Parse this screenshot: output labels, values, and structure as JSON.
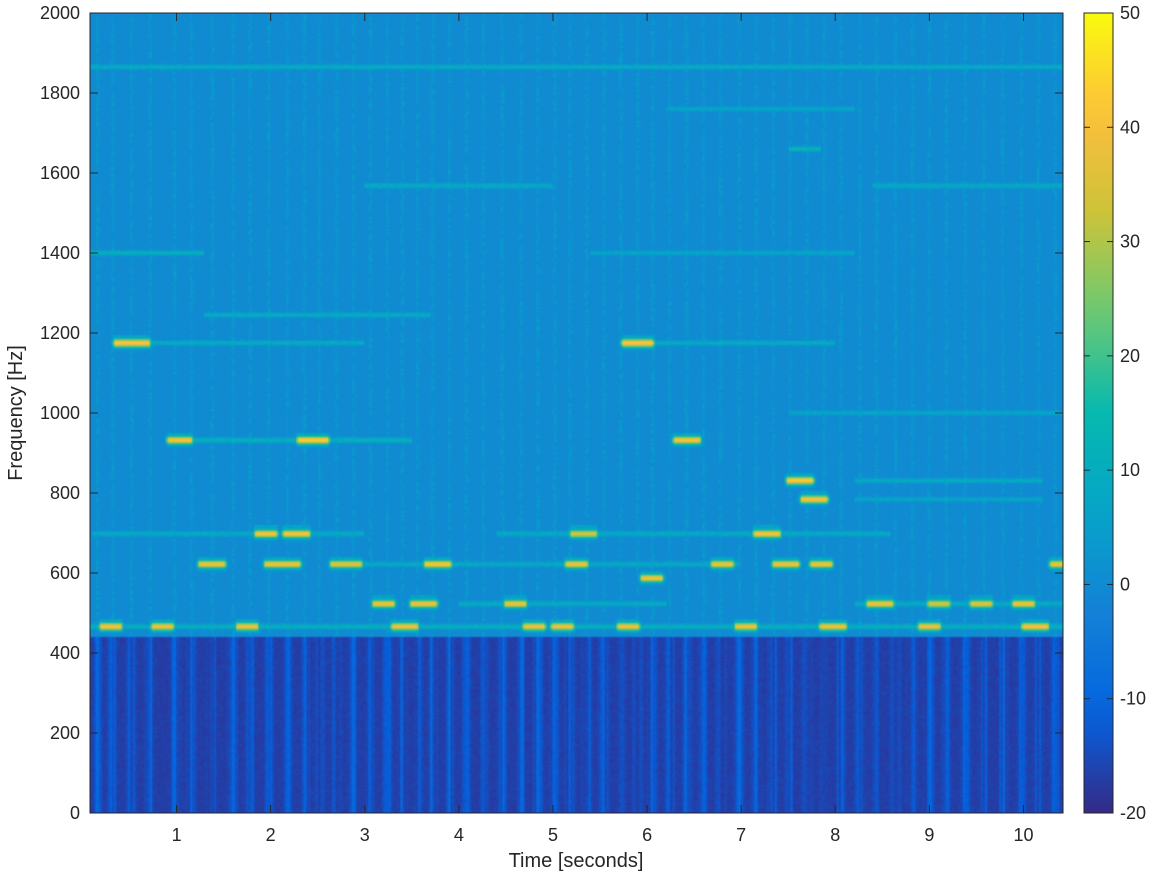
{
  "chart_data": {
    "type": "heatmap",
    "title": "",
    "xlabel": "Time [seconds]",
    "ylabel": "Frequency [Hz]",
    "xlim": [
      0.08,
      10.42
    ],
    "ylim": [
      0,
      2000
    ],
    "x_ticks": [
      1,
      2,
      3,
      4,
      5,
      6,
      7,
      8,
      9,
      10
    ],
    "y_ticks": [
      0,
      200,
      400,
      600,
      800,
      1000,
      1200,
      1400,
      1600,
      1800,
      2000
    ],
    "colorbar": {
      "min": -20,
      "max": 50,
      "ticks": [
        -20,
        -10,
        0,
        10,
        20,
        30,
        40,
        50
      ],
      "colormap": "parula"
    },
    "lowpass_cutoff_hz": 440,
    "note_frame_times_s": [
      0.16,
      0.32,
      0.52,
      0.72,
      0.98,
      1.16,
      1.38,
      1.6,
      1.78,
      1.98,
      2.18,
      2.36,
      2.52,
      2.7,
      2.88,
      3.06,
      3.24,
      3.4,
      3.56,
      3.72,
      3.9,
      4.08,
      4.26,
      4.46,
      4.66,
      4.84,
      5.02,
      5.18,
      5.36,
      5.54,
      5.72,
      5.9,
      6.06,
      6.24,
      6.42,
      6.6,
      6.78,
      6.98,
      7.16,
      7.34,
      7.52,
      7.7,
      7.88,
      8.06,
      8.26,
      8.44,
      8.64,
      8.82,
      9.0,
      9.18,
      9.38,
      9.58,
      9.78,
      9.98,
      10.16,
      10.34
    ],
    "strong_notes": [
      {
        "t0": 0.2,
        "t1": 0.4,
        "hz": 466,
        "db": 42
      },
      {
        "t0": 0.35,
        "t1": 0.7,
        "hz": 1175,
        "db": 44
      },
      {
        "t0": 0.75,
        "t1": 0.95,
        "hz": 466,
        "db": 40
      },
      {
        "t0": 0.92,
        "t1": 1.15,
        "hz": 932,
        "db": 42
      },
      {
        "t0": 1.25,
        "t1": 1.5,
        "hz": 622,
        "db": 40
      },
      {
        "t0": 1.65,
        "t1": 1.85,
        "hz": 466,
        "db": 40
      },
      {
        "t0": 1.85,
        "t1": 2.05,
        "hz": 698,
        "db": 42
      },
      {
        "t0": 1.95,
        "t1": 2.3,
        "hz": 622,
        "db": 40
      },
      {
        "t0": 2.15,
        "t1": 2.4,
        "hz": 698,
        "db": 42
      },
      {
        "t0": 2.3,
        "t1": 2.6,
        "hz": 932,
        "db": 44
      },
      {
        "t0": 2.65,
        "t1": 2.95,
        "hz": 622,
        "db": 38
      },
      {
        "t0": 3.1,
        "t1": 3.3,
        "hz": 523,
        "db": 40
      },
      {
        "t0": 3.3,
        "t1": 3.55,
        "hz": 466,
        "db": 40
      },
      {
        "t0": 3.5,
        "t1": 3.75,
        "hz": 523,
        "db": 40
      },
      {
        "t0": 3.65,
        "t1": 3.9,
        "hz": 622,
        "db": 42
      },
      {
        "t0": 4.5,
        "t1": 4.7,
        "hz": 523,
        "db": 40
      },
      {
        "t0": 4.7,
        "t1": 4.9,
        "hz": 466,
        "db": 40
      },
      {
        "t0": 5.0,
        "t1": 5.2,
        "hz": 466,
        "db": 40
      },
      {
        "t0": 5.15,
        "t1": 5.35,
        "hz": 622,
        "db": 40
      },
      {
        "t0": 5.2,
        "t1": 5.45,
        "hz": 698,
        "db": 36
      },
      {
        "t0": 5.7,
        "t1": 5.9,
        "hz": 466,
        "db": 40
      },
      {
        "t0": 5.75,
        "t1": 6.05,
        "hz": 1175,
        "db": 44
      },
      {
        "t0": 5.95,
        "t1": 6.15,
        "hz": 587,
        "db": 40
      },
      {
        "t0": 6.3,
        "t1": 6.55,
        "hz": 932,
        "db": 42
      },
      {
        "t0": 6.7,
        "t1": 6.9,
        "hz": 622,
        "db": 40
      },
      {
        "t0": 6.95,
        "t1": 7.15,
        "hz": 466,
        "db": 40
      },
      {
        "t0": 7.15,
        "t1": 7.4,
        "hz": 698,
        "db": 42
      },
      {
        "t0": 7.35,
        "t1": 7.6,
        "hz": 622,
        "db": 40
      },
      {
        "t0": 7.5,
        "t1": 7.75,
        "hz": 831,
        "db": 44
      },
      {
        "t0": 7.65,
        "t1": 7.9,
        "hz": 784,
        "db": 42
      },
      {
        "t0": 7.75,
        "t1": 7.95,
        "hz": 622,
        "db": 40
      },
      {
        "t0": 7.85,
        "t1": 8.1,
        "hz": 466,
        "db": 40
      },
      {
        "t0": 8.35,
        "t1": 8.6,
        "hz": 523,
        "db": 40
      },
      {
        "t0": 8.9,
        "t1": 9.1,
        "hz": 466,
        "db": 40
      },
      {
        "t0": 9.0,
        "t1": 9.2,
        "hz": 523,
        "db": 36
      },
      {
        "t0": 9.45,
        "t1": 9.65,
        "hz": 523,
        "db": 38
      },
      {
        "t0": 9.9,
        "t1": 10.1,
        "hz": 523,
        "db": 40
      },
      {
        "t0": 10.0,
        "t1": 10.25,
        "hz": 466,
        "db": 42
      },
      {
        "t0": 10.3,
        "t1": 10.42,
        "hz": 622,
        "db": 40
      }
    ],
    "faint_harmonic_lines": [
      {
        "t0": 0.08,
        "t1": 1.3,
        "hz": 1400,
        "db": 14
      },
      {
        "t0": 0.7,
        "t1": 3.0,
        "hz": 1175,
        "db": 12
      },
      {
        "t0": 1.0,
        "t1": 3.5,
        "hz": 932,
        "db": 14
      },
      {
        "t0": 0.1,
        "t1": 3.0,
        "hz": 698,
        "db": 12
      },
      {
        "t0": 0.08,
        "t1": 10.42,
        "hz": 1865,
        "db": 12
      },
      {
        "t0": 1.3,
        "t1": 3.7,
        "hz": 1245,
        "db": 12
      },
      {
        "t0": 3.0,
        "t1": 5.0,
        "hz": 1568,
        "db": 12
      },
      {
        "t0": 3.0,
        "t1": 7.0,
        "hz": 622,
        "db": 12
      },
      {
        "t0": 6.2,
        "t1": 8.2,
        "hz": 1760,
        "db": 10
      },
      {
        "t0": 7.5,
        "t1": 7.85,
        "hz": 1660,
        "db": 16
      },
      {
        "t0": 8.2,
        "t1": 10.2,
        "hz": 831,
        "db": 12
      },
      {
        "t0": 8.2,
        "t1": 10.2,
        "hz": 784,
        "db": 10
      },
      {
        "t0": 8.4,
        "t1": 10.42,
        "hz": 1568,
        "db": 12
      },
      {
        "t0": 5.4,
        "t1": 8.2,
        "hz": 1400,
        "db": 10
      },
      {
        "t0": 7.5,
        "t1": 10.42,
        "hz": 1000,
        "db": 10
      },
      {
        "t0": 4.4,
        "t1": 8.6,
        "hz": 698,
        "db": 12
      },
      {
        "t0": 5.9,
        "t1": 8.0,
        "hz": 1175,
        "db": 12
      },
      {
        "t0": 0.08,
        "t1": 10.42,
        "hz": 466,
        "db": 14
      },
      {
        "t0": 4.0,
        "t1": 6.2,
        "hz": 523,
        "db": 12
      },
      {
        "t0": 8.2,
        "t1": 10.42,
        "hz": 523,
        "db": 12
      }
    ]
  }
}
